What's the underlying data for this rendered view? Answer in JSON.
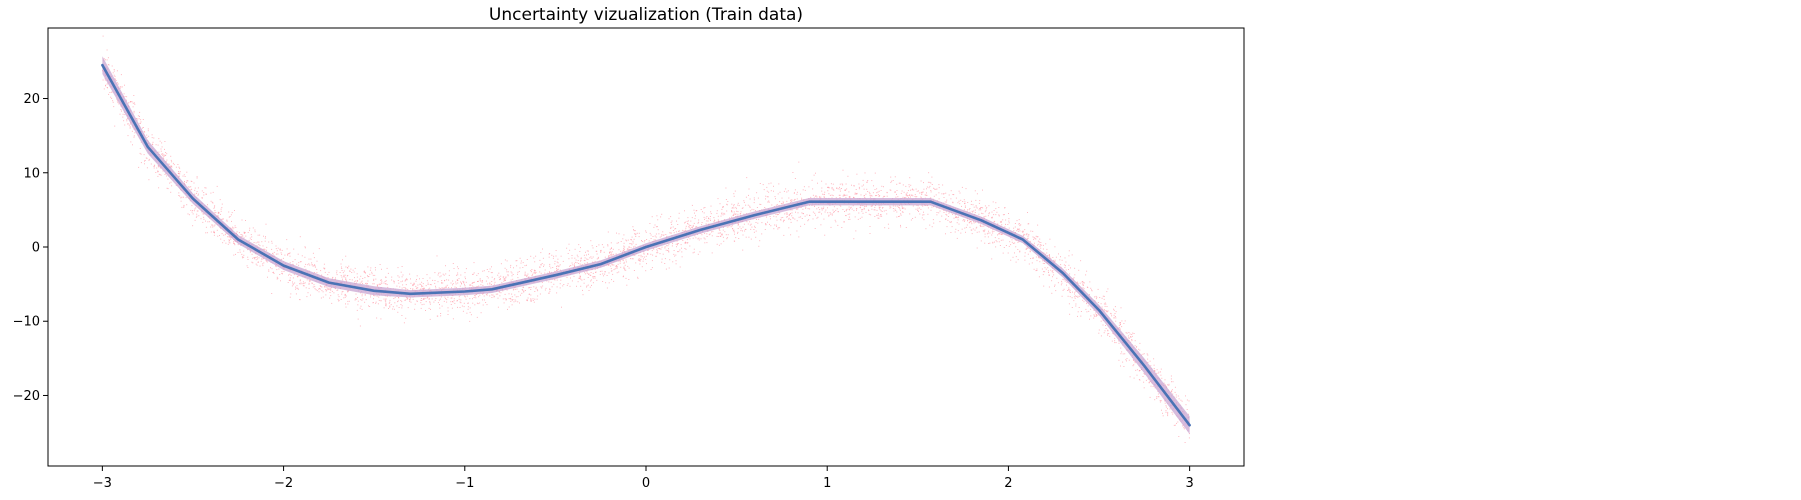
{
  "chart_data": {
    "type": "line",
    "title": "Uncertainty vizualization (Train data)",
    "xlabel": "",
    "ylabel": "",
    "xlim": [
      -3.3,
      3.3
    ],
    "ylim": [
      -29.5,
      29.5
    ],
    "x_ticks": [
      {
        "value": -3,
        "label": "−3"
      },
      {
        "value": -2,
        "label": "−2"
      },
      {
        "value": -1,
        "label": "−1"
      },
      {
        "value": 0,
        "label": "0"
      },
      {
        "value": 1,
        "label": "1"
      },
      {
        "value": 2,
        "label": "2"
      },
      {
        "value": 3,
        "label": "3"
      }
    ],
    "y_ticks": [
      {
        "value": 20,
        "label": "20"
      },
      {
        "value": 10,
        "label": "10"
      },
      {
        "value": 0,
        "label": "0"
      },
      {
        "value": -10,
        "label": "−10"
      },
      {
        "value": -20,
        "label": "−20"
      }
    ],
    "grid": false,
    "legend": "none",
    "scatter_color": "#ff9aa6",
    "band_color": "#c9a6d2",
    "line_color": "#4a73b5",
    "noise_std": 1.5,
    "series": [
      {
        "x": [
          -3.0,
          -2.75,
          -2.5,
          -2.25,
          -2.0,
          -1.75,
          -1.5,
          -1.3,
          -1.0,
          -0.85,
          -0.5,
          -0.25,
          0.0,
          0.3,
          0.6,
          0.9,
          1.1,
          1.3,
          1.57,
          1.85,
          2.08,
          2.3,
          2.5,
          2.75,
          3.0
        ],
        "values": [
          24.5,
          13.5,
          6.5,
          1.0,
          -2.5,
          -4.8,
          -5.9,
          -6.3,
          -6.0,
          -5.7,
          -3.8,
          -2.3,
          0.0,
          2.3,
          4.3,
          6.1,
          6.1,
          6.1,
          6.1,
          3.6,
          1.0,
          -3.5,
          -8.5,
          -16.0,
          -24.0
        ]
      }
    ],
    "band": {
      "lower": [
        23.3,
        12.6,
        5.8,
        0.4,
        -3.1,
        -5.4,
        -6.5,
        -6.8,
        -6.5,
        -6.2,
        -4.3,
        -2.8,
        -0.5,
        1.8,
        3.8,
        5.6,
        5.6,
        5.6,
        5.6,
        3.1,
        0.5,
        -4.1,
        -9.2,
        -17.0,
        -25.2
      ],
      "upper": [
        25.7,
        14.4,
        7.2,
        1.6,
        -1.9,
        -4.2,
        -5.3,
        -5.8,
        -5.5,
        -5.2,
        -3.3,
        -1.8,
        0.5,
        2.8,
        4.8,
        6.6,
        6.6,
        6.6,
        6.6,
        4.1,
        1.5,
        -2.9,
        -7.8,
        -15.0,
        -22.8
      ]
    }
  }
}
